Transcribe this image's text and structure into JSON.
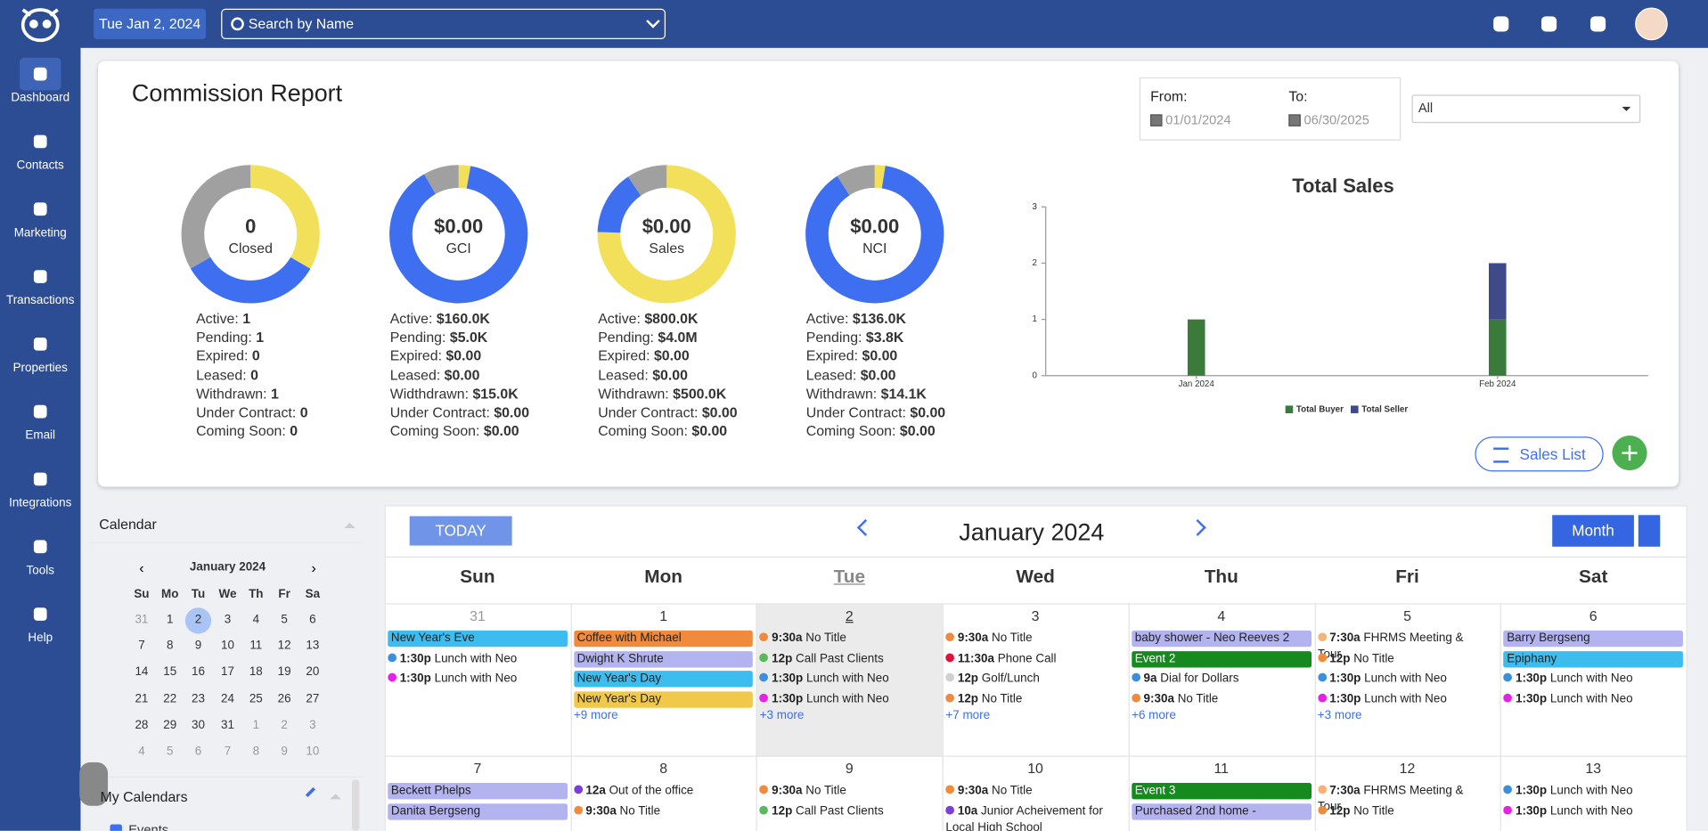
{
  "header": {
    "date": "Tue Jan 2, 2024",
    "search": "Search by Name"
  },
  "nav": [
    "Dashboard",
    "Contacts",
    "Marketing",
    "Transactions",
    "Properties",
    "Email",
    "Integrations",
    "Tools",
    "Help"
  ],
  "report": {
    "title": "Commission Report",
    "from_label": "From:",
    "to_label": "To:",
    "from": "01/01/2024",
    "to": "06/30/2025",
    "filter": "All",
    "sales_list": "Sales List",
    "donuts": [
      {
        "center_value": "0",
        "center_label": "Closed",
        "stats": [
          {
            "label": "Active:",
            "value": 1,
            "color": "#3d6ff0"
          },
          {
            "label": "Pending:",
            "value": 1,
            "color": "#f2df5a"
          },
          {
            "label": "Expired:",
            "value": 0
          },
          {
            "label": "Leased:",
            "value": 0
          },
          {
            "label": "Withdrawn:",
            "value": 1,
            "color": "#a0a0a0"
          },
          {
            "label": "Under Contract:",
            "value": 0
          },
          {
            "label": "Coming Soon:",
            "value": 0
          }
        ]
      },
      {
        "center_value": "$0.00",
        "center_label": "GCI",
        "stats": [
          {
            "label": "Active:",
            "value": 160000,
            "value_label": "$160.0K",
            "color": "#3d6ff0"
          },
          {
            "label": "Pending:",
            "value": 5000,
            "value_label": "$5.0K",
            "color": "#f2df5a"
          },
          {
            "label": "Expired:",
            "value": 0,
            "value_label": "$0.00"
          },
          {
            "label": "Leased:",
            "value": 0,
            "value_label": "$0.00"
          },
          {
            "label": "Widthdrawn:",
            "value": 15000,
            "value_label": "$15.0K",
            "color": "#a0a0a0"
          },
          {
            "label": "Under Contract:",
            "value": 0,
            "value_label": "$0.00"
          },
          {
            "label": "Coming Soon:",
            "value": 0,
            "value_label": "$0.00"
          }
        ]
      },
      {
        "center_value": "$0.00",
        "center_label": "Sales",
        "stats": [
          {
            "label": "Active:",
            "value": 800000,
            "value_label": "$800.0K",
            "color": "#3d6ff0"
          },
          {
            "label": "Pending:",
            "value": 4000000,
            "value_label": "$4.0M",
            "color": "#f2df5a"
          },
          {
            "label": "Expired:",
            "value": 0,
            "value_label": "$0.00"
          },
          {
            "label": "Leased:",
            "value": 0,
            "value_label": "$0.00"
          },
          {
            "label": "Withdrawn:",
            "value": 500000,
            "value_label": "$500.0K",
            "color": "#a0a0a0"
          },
          {
            "label": "Under Contract:",
            "value": 0,
            "value_label": "$0.00"
          },
          {
            "label": "Coming Soon:",
            "value": 0,
            "value_label": "$0.00"
          }
        ]
      },
      {
        "center_value": "$0.00",
        "center_label": "NCI",
        "stats": [
          {
            "label": "Active:",
            "value": 136000,
            "value_label": "$136.0K",
            "color": "#3d6ff0"
          },
          {
            "label": "Pending:",
            "value": 3800,
            "value_label": "$3.8K",
            "color": "#f2df5a"
          },
          {
            "label": "Expired:",
            "value": 0,
            "value_label": "$0.00"
          },
          {
            "label": "Leased:",
            "value": 0,
            "value_label": "$0.00"
          },
          {
            "label": "Withdrawn:",
            "value": 14100,
            "value_label": "$14.1K",
            "color": "#a0a0a0"
          },
          {
            "label": "Under Contract:",
            "value": 0,
            "value_label": "$0.00"
          },
          {
            "label": "Coming Soon:",
            "value": 0,
            "value_label": "$0.00"
          }
        ]
      }
    ]
  },
  "chart_data": {
    "type": "bar",
    "stacked": true,
    "title": "Total Sales",
    "categories": [
      "Jan 2024",
      "Feb 2024"
    ],
    "series": [
      {
        "name": "Total Buyer",
        "color": "#3a7a3a",
        "values": [
          1,
          1
        ]
      },
      {
        "name": "Total Seller",
        "color": "#3f4a8a",
        "values": [
          0,
          1
        ]
      }
    ],
    "ylim": [
      0,
      3
    ],
    "yticks": [
      0,
      1,
      2,
      3
    ],
    "legend": "bottom"
  },
  "mini_calendar": {
    "title": "Calendar",
    "month": "January 2024",
    "prev": "‹",
    "next": "›",
    "weekdays": [
      "Su",
      "Mo",
      "Tu",
      "We",
      "Th",
      "Fr",
      "Sa"
    ],
    "rows": [
      [
        31,
        1,
        2,
        3,
        4,
        5,
        6
      ],
      [
        7,
        8,
        9,
        10,
        11,
        12,
        13
      ],
      [
        14,
        15,
        16,
        17,
        18,
        19,
        20
      ],
      [
        21,
        22,
        23,
        24,
        25,
        26,
        27
      ],
      [
        28,
        29,
        30,
        31,
        1,
        2,
        3
      ],
      [
        4,
        5,
        6,
        7,
        8,
        9,
        10
      ]
    ],
    "my_calendars": "My Calendars",
    "events_label": "Events"
  },
  "calendar": {
    "today": "TODAY",
    "month": "January 2024",
    "view": "Month",
    "weekdays": [
      "Sun",
      "Mon",
      "Tue",
      "Wed",
      "Thu",
      "Fri",
      "Sat"
    ],
    "weeks": [
      [
        {
          "day": 31,
          "events": [
            {
              "title": "New Year's Eve",
              "color": "#3dbdef"
            },
            {
              "time": "1:30p",
              "title": "Lunch with Neo",
              "color": "#3d8fd9"
            },
            {
              "time": "1:30p",
              "title": "Lunch with Neo",
              "color": "#e620e6"
            }
          ]
        },
        {
          "day": 1,
          "events": [
            {
              "title": "Coffee with Michael",
              "color": "#f08a3c"
            },
            {
              "title": "Dwight K Shrute",
              "color": "#b3b3f0"
            },
            {
              "title": "New Year's Day",
              "color": "#3dbdef"
            },
            {
              "title": "New Year's Day",
              "color": "#f0c84a"
            }
          ],
          "more": "+9 more"
        },
        {
          "day": 2,
          "events": [
            {
              "time": "9:30a",
              "title": "No Title",
              "color": "#f08a3c"
            },
            {
              "time": "12p",
              "title": "Call Past Clients",
              "color": "#5cb85c"
            },
            {
              "time": "1:30p",
              "title": "Lunch with Neo",
              "color": "#3d8fd9"
            },
            {
              "time": "1:30p",
              "title": "Lunch with Neo",
              "color": "#e620e6"
            }
          ],
          "more": "+3 more"
        },
        {
          "day": 3,
          "events": [
            {
              "time": "9:30a",
              "title": "No Title",
              "color": "#f08a3c"
            },
            {
              "time": "11:30a",
              "title": "Phone Call",
              "color": "#dc143c"
            },
            {
              "time": "12p",
              "title": "Golf/Lunch",
              "color": "#d0d0d0"
            },
            {
              "time": "12p",
              "title": "No Title",
              "color": "#f08a3c"
            }
          ],
          "more": "+7 more"
        },
        {
          "day": 4,
          "events": [
            {
              "title": "baby shower - Neo Reeves 2",
              "color": "#b3b3f0"
            },
            {
              "title": "Event 2",
              "color": "#168a1e"
            },
            {
              "time": "9a",
              "title": "Dial for Dollars",
              "color": "#3d8fd9"
            },
            {
              "time": "9:30a",
              "title": "No Title",
              "color": "#f08a3c"
            }
          ],
          "more": "+6 more"
        },
        {
          "day": 5,
          "events": [
            {
              "time": "7:30a",
              "title": "FHRMS Meeting & Tour",
              "color": "#f7b27a"
            },
            {
              "time": "12p",
              "title": "No Title",
              "color": "#f08a3c"
            },
            {
              "time": "1:30p",
              "title": "Lunch with Neo",
              "color": "#3d8fd9"
            },
            {
              "time": "1:30p",
              "title": "Lunch with Neo",
              "color": "#e620e6"
            }
          ],
          "more": "+3 more"
        },
        {
          "day": 6,
          "events": [
            {
              "title": "Barry Bergseng",
              "color": "#b3b3f0"
            },
            {
              "title": "Epiphany",
              "color": "#3dbdef"
            },
            {
              "time": "1:30p",
              "title": "Lunch with Neo",
              "color": "#3d8fd9"
            },
            {
              "time": "1:30p",
              "title": "Lunch with Neo",
              "color": "#e620e6"
            }
          ]
        }
      ],
      [
        {
          "day": 7,
          "events": [
            {
              "title": "Beckett Phelps",
              "color": "#b3b3f0"
            },
            {
              "title": "Danita Bergseng",
              "color": "#b3b3f0"
            }
          ]
        },
        {
          "day": 8,
          "events": [
            {
              "time": "12a",
              "title": "Out of the office",
              "color": "#7b3fd6"
            },
            {
              "time": "9:30a",
              "title": "No Title",
              "color": "#f08a3c"
            }
          ]
        },
        {
          "day": 9,
          "events": [
            {
              "time": "9:30a",
              "title": "No Title",
              "color": "#f08a3c"
            },
            {
              "time": "12p",
              "title": "Call Past Clients",
              "color": "#5cb85c"
            }
          ]
        },
        {
          "day": 10,
          "events": [
            {
              "time": "9:30a",
              "title": "No Title",
              "color": "#f08a3c"
            },
            {
              "time": "10a",
              "title": "Junior Acheivement for Local High School",
              "color": "#7b3fd6"
            }
          ]
        },
        {
          "day": 11,
          "events": [
            {
              "title": "Event 3",
              "color": "#168a1e"
            },
            {
              "title": "Purchased 2nd home -",
              "color": "#b3b3f0"
            }
          ]
        },
        {
          "day": 12,
          "events": [
            {
              "time": "7:30a",
              "title": "FHRMS Meeting & Tour",
              "color": "#f7b27a"
            },
            {
              "time": "12p",
              "title": "No Title",
              "color": "#f08a3c"
            }
          ]
        },
        {
          "day": 13,
          "events": [
            {
              "time": "1:30p",
              "title": "Lunch with Neo",
              "color": "#3d8fd9"
            },
            {
              "time": "1:30p",
              "title": "Lunch with Neo",
              "color": "#e620e6"
            }
          ]
        }
      ]
    ]
  }
}
